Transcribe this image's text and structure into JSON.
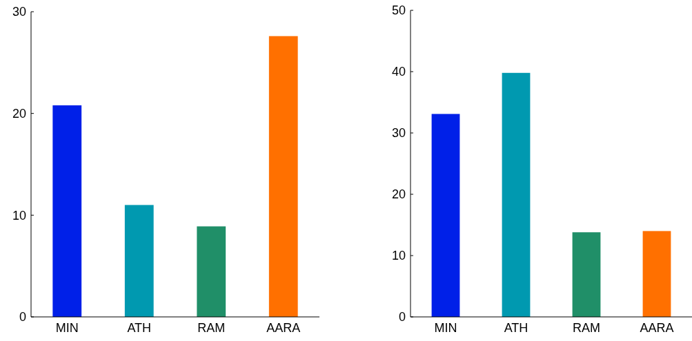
{
  "chart_data": [
    {
      "type": "bar",
      "categories": [
        "MIN",
        "ATH",
        "RAM",
        "AARA"
      ],
      "values": [
        20.8,
        11.0,
        8.9,
        27.6
      ],
      "colors": [
        "#0020e8",
        "#0099b0",
        "#208f68",
        "#ff7000"
      ],
      "ylim": [
        0,
        30
      ],
      "yticks": [
        0,
        10,
        20,
        30
      ]
    },
    {
      "type": "bar",
      "categories": [
        "MIN",
        "ATH",
        "RAM",
        "AARA"
      ],
      "values": [
        33.1,
        39.8,
        13.8,
        14.0
      ],
      "colors": [
        "#0020e8",
        "#0099b0",
        "#208f68",
        "#ff7000"
      ],
      "ylim": [
        0,
        50
      ],
      "yticks": [
        0,
        10,
        20,
        30,
        40,
        50
      ]
    }
  ]
}
